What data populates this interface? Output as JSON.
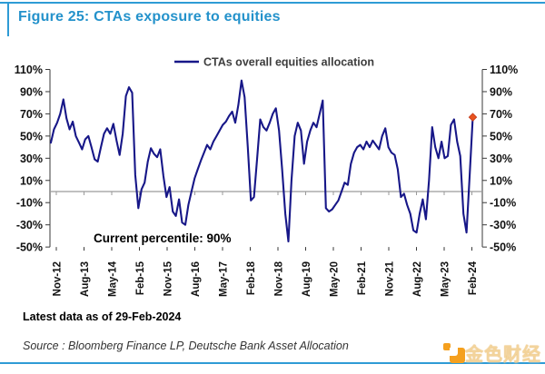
{
  "header": {
    "title": "Figure 25: CTAs exposure to equities"
  },
  "chart_data": {
    "type": "line",
    "title": "Figure 25: CTAs exposure to equities",
    "legend": [
      "CTAs overall equities allocation"
    ],
    "legend_position": "top-center",
    "annotation": "Current percentile: 90%",
    "x_tick_labels": [
      "Nov-12",
      "Aug-13",
      "May-14",
      "Feb-15",
      "Nov-15",
      "Aug-16",
      "May-17",
      "Feb-18",
      "Nov-18",
      "Aug-19",
      "May-20",
      "Feb-21",
      "Nov-21",
      "Aug-22",
      "May-23",
      "Feb-24"
    ],
    "y_tick_labels": [
      "110%",
      "90%",
      "70%",
      "50%",
      "30%",
      "10%",
      "-10%",
      "-30%",
      "-50%"
    ],
    "ylim": [
      -50,
      110
    ],
    "grid": "zero-line-only",
    "x_range": [
      "Nov-2012",
      "Feb-2024"
    ],
    "sampling": "approx monthly, evenly spaced",
    "series": [
      {
        "name": "CTAs overall equities allocation",
        "color": "#171788",
        "values": [
          44,
          56,
          62,
          70,
          83,
          66,
          56,
          63,
          50,
          44,
          38,
          47,
          50,
          40,
          29,
          27,
          40,
          52,
          57,
          52,
          61,
          46,
          33,
          52,
          86,
          94,
          89,
          15,
          -15,
          2,
          8,
          27,
          39,
          34,
          31,
          38,
          14,
          -5,
          4,
          -18,
          -22,
          -7,
          -28,
          -30,
          -12,
          0,
          12,
          20,
          28,
          35,
          42,
          38,
          45,
          50,
          55,
          60,
          63,
          68,
          72,
          62,
          78,
          100,
          85,
          40,
          -8,
          -5,
          30,
          65,
          58,
          55,
          62,
          70,
          75,
          55,
          20,
          -20,
          -45,
          10,
          50,
          62,
          55,
          25,
          45,
          55,
          62,
          58,
          70,
          82,
          -15,
          -18,
          -16,
          -12,
          -8,
          0,
          8,
          6,
          25,
          35,
          40,
          42,
          38,
          45,
          40,
          46,
          42,
          38,
          50,
          57,
          40,
          35,
          33,
          20,
          -5,
          -2,
          -12,
          -20,
          -35,
          -37,
          -20,
          -7,
          -25,
          10,
          58,
          40,
          30,
          45,
          30,
          32,
          60,
          65,
          45,
          32,
          -20,
          -37,
          15,
          67
        ]
      }
    ],
    "end_marker": {
      "shape": "diamond",
      "color": "#e8541e",
      "value": 67
    },
    "colors": {
      "line": "#171788",
      "zero_line": "#9a9a9a",
      "axis": "#3a3a3a",
      "tick_text": "#111111"
    }
  },
  "footer": {
    "latest_data": "Latest data as of 29-Feb-2024",
    "source": "Source : Bloomberg Finance LP, Deutsche Bank Asset Allocation"
  },
  "watermark": {
    "text": "金色财经",
    "icon_color": "#f5a01e"
  },
  "accent_color": "#2e9bd5"
}
